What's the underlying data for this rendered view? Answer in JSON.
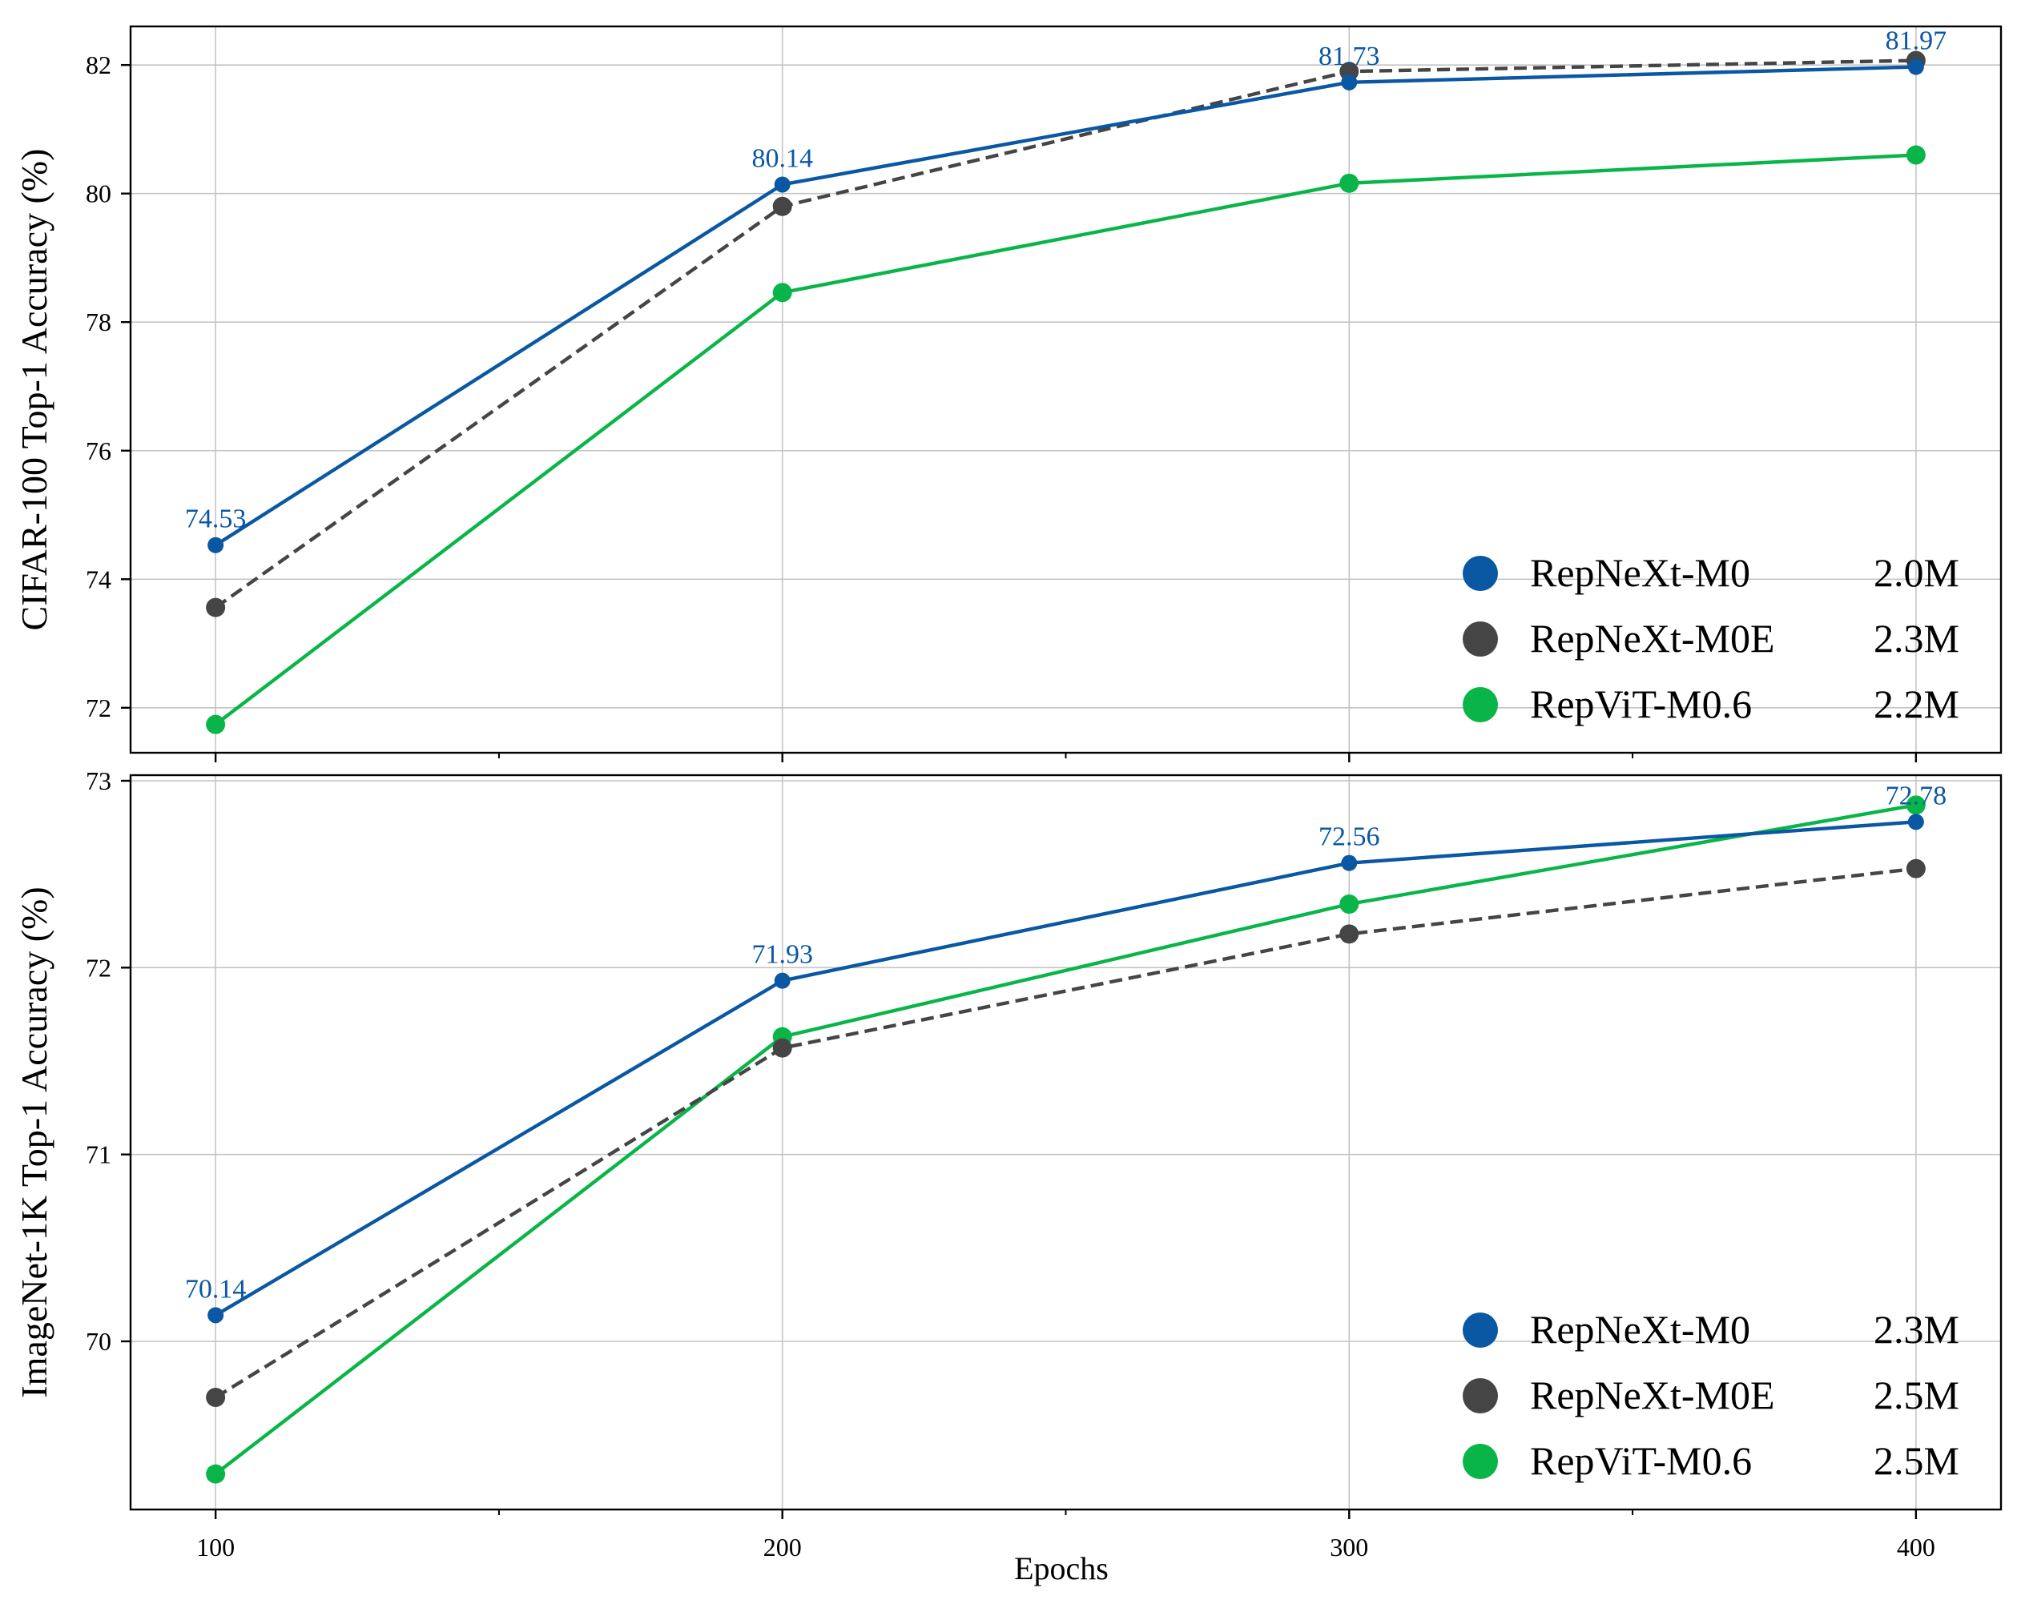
{
  "xlabel": "Epochs",
  "colors": {
    "RepNeXt-M0": "#0a57a4",
    "RepNeXt-M0E": "#454545",
    "RepViT-M0.6": "#09b548",
    "grid": "#c4c4c4",
    "frame": "#000000"
  },
  "chart_data": [
    {
      "type": "line",
      "title": "",
      "xlabel": "",
      "ylabel": "CIFAR-100 Top-1 Accuracy (%)",
      "x": [
        100,
        200,
        300,
        400
      ],
      "xlim": [
        85,
        415
      ],
      "ylim": [
        71.3,
        82.6
      ],
      "xticks": [
        100,
        200,
        300,
        400
      ],
      "xminor": [
        150,
        250,
        350
      ],
      "show_xtick_labels": false,
      "yticks": [
        72,
        74,
        76,
        78,
        80,
        82
      ],
      "grid": true,
      "legend_position": "lower-right",
      "series": [
        {
          "name": "RepNeXt-M0",
          "params": "2.0M",
          "style": "solid",
          "values": [
            74.53,
            80.14,
            81.73,
            81.97
          ],
          "labels": [
            "74.53",
            "80.14",
            "81.73",
            "81.97"
          ]
        },
        {
          "name": "RepNeXt-M0E",
          "params": "2.3M",
          "style": "dashed",
          "values": [
            73.56,
            79.8,
            81.9,
            82.07
          ]
        },
        {
          "name": "RepViT-M0.6",
          "params": "2.2M",
          "style": "solid",
          "values": [
            71.74,
            78.46,
            80.16,
            80.6
          ]
        }
      ]
    },
    {
      "type": "line",
      "title": "",
      "xlabel": "Epochs",
      "ylabel": "ImageNet-1K Top-1 Accuracy (%)",
      "x": [
        100,
        200,
        300,
        400
      ],
      "xlim": [
        85,
        415
      ],
      "ylim": [
        69.1,
        73.03
      ],
      "xticks": [
        100,
        200,
        300,
        400
      ],
      "xminor": [
        150,
        250,
        350
      ],
      "show_xtick_labels": true,
      "yticks": [
        70,
        71,
        72,
        73
      ],
      "grid": true,
      "legend_position": "lower-right",
      "series": [
        {
          "name": "RepNeXt-M0",
          "params": "2.3M",
          "style": "solid",
          "values": [
            70.14,
            71.93,
            72.56,
            72.78
          ],
          "labels": [
            "70.14",
            "71.93",
            "72.56",
            "72.78"
          ]
        },
        {
          "name": "RepNeXt-M0E",
          "params": "2.5M",
          "style": "dashed",
          "values": [
            69.7,
            71.57,
            72.18,
            72.53
          ]
        },
        {
          "name": "RepViT-M0.6",
          "params": "2.5M",
          "style": "solid",
          "values": [
            69.29,
            71.63,
            72.34,
            72.87
          ]
        }
      ]
    }
  ]
}
